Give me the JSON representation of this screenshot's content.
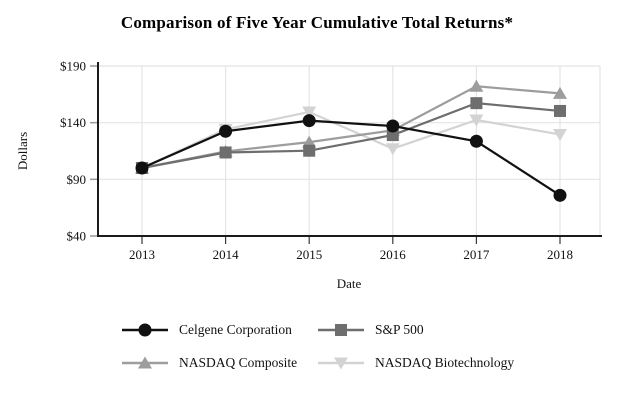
{
  "chart_data": {
    "type": "line",
    "title": "Comparison of Five Year Cumulative Total Returns*",
    "xlabel": "Date",
    "ylabel": "Dollars",
    "categories": [
      "2013",
      "2014",
      "2015",
      "2016",
      "2017",
      "2018"
    ],
    "ylim": [
      40,
      190
    ],
    "yticks": [
      40,
      90,
      140,
      190
    ],
    "ytick_labels": [
      "$40",
      "$90",
      "$140",
      "$190"
    ],
    "grid": true,
    "legend_position": "bottom",
    "series": [
      {
        "name": "Celgene Corporation",
        "marker": "circle",
        "color": "#111111",
        "values": [
          100.0,
          132.44,
          141.79,
          137.03,
          123.58,
          75.88
        ]
      },
      {
        "name": "S&P 500",
        "marker": "square",
        "color": "#6e6e6e",
        "values": [
          100.0,
          113.69,
          115.26,
          129.05,
          157.22,
          150.33
        ]
      },
      {
        "name": "NASDAQ Composite",
        "marker": "triangle-up",
        "color": "#9d9d9d",
        "values": [
          100.0,
          114.62,
          122.81,
          133.19,
          172.11,
          165.84
        ]
      },
      {
        "name": "NASDAQ Biotechnology",
        "marker": "triangle-down",
        "color": "#d3d3d3",
        "values": [
          100.0,
          134.1,
          149.43,
          117.02,
          142.35,
          129.58
        ]
      }
    ]
  },
  "colors": {
    "background": "#ffffff",
    "axis": "#1a1a1a",
    "grid": "#e4e4e4",
    "y_tick": "#999999",
    "x_tick": "#3a3a3a",
    "text": "#111111"
  }
}
